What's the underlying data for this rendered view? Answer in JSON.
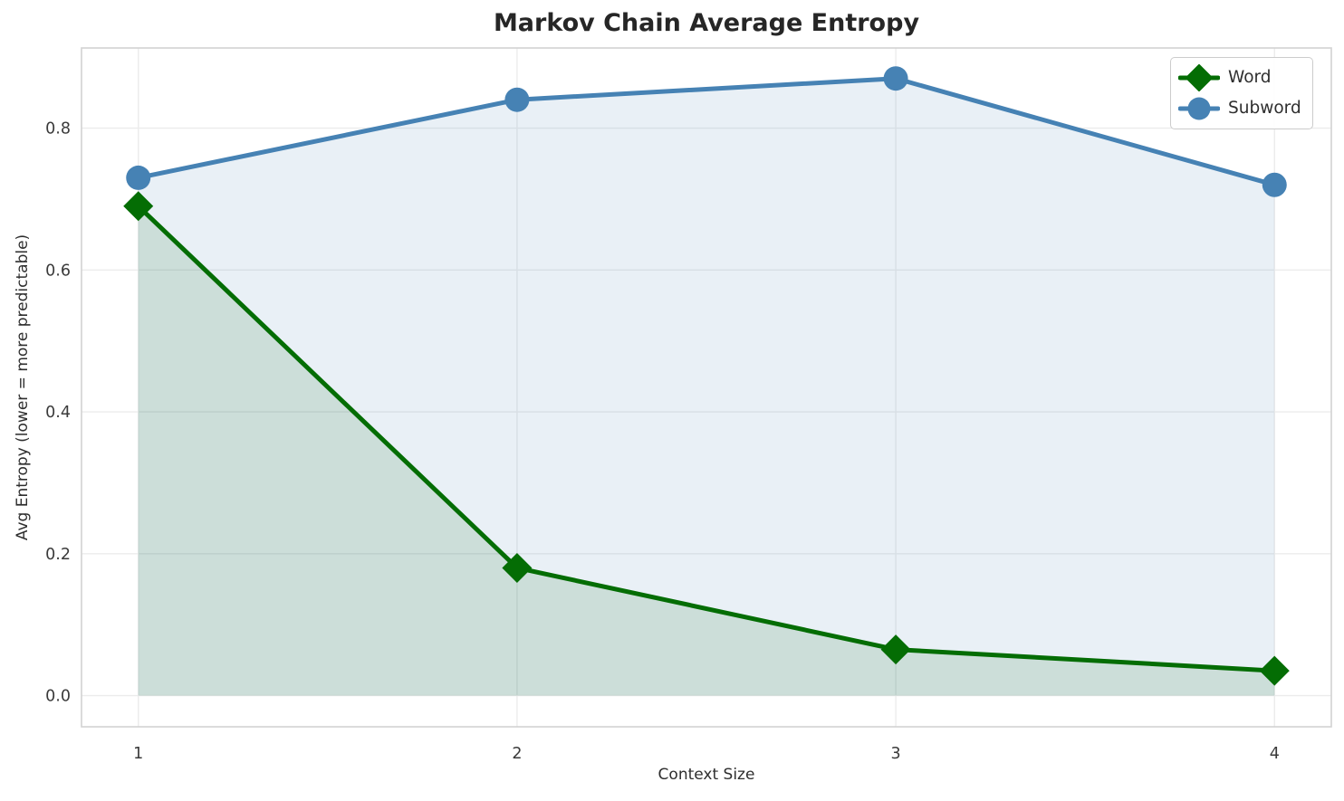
{
  "chart_data": {
    "type": "line",
    "title": "Markov Chain Average Entropy",
    "xlabel": "Context Size",
    "ylabel": "Avg Entropy (lower = more predictable)",
    "x": [
      1,
      2,
      3,
      4
    ],
    "xticks": [
      1,
      2,
      3,
      4
    ],
    "yticks": [
      0.0,
      0.2,
      0.4,
      0.6,
      0.8
    ],
    "xlim": [
      0.85,
      4.15
    ],
    "ylim": [
      -0.044,
      0.913
    ],
    "grid": true,
    "legend_position": "top-right",
    "series": [
      {
        "name": "Word",
        "values": [
          0.69,
          0.18,
          0.065,
          0.035
        ],
        "color": "#046d04",
        "fill": "rgba(0,100,0,0.13)",
        "marker": "diamond"
      },
      {
        "name": "Subword",
        "values": [
          0.73,
          0.84,
          0.87,
          0.72
        ],
        "color": "#4682b4",
        "fill": "rgba(70,130,180,0.12)",
        "marker": "circle"
      }
    ],
    "colors": {
      "grid": "#ececec",
      "spine": "#d2d2d2",
      "tick": "#3a3a3a",
      "background": "#ffffff"
    }
  }
}
